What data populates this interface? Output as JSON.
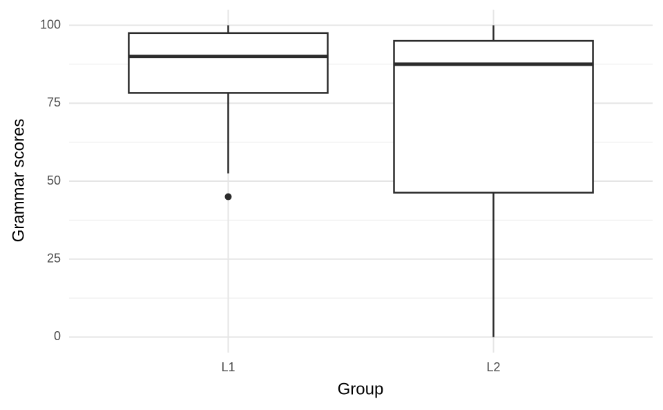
{
  "chart_data": {
    "type": "boxplot",
    "x_label": "Group",
    "y_label": "Grammar scores",
    "categories": [
      "L1",
      "L2"
    ],
    "boxes": [
      {
        "whisker_low": 52.5,
        "q1": 78.3,
        "median": 90,
        "q3": 97.5,
        "whisker_high": 100,
        "outliers": [
          45
        ]
      },
      {
        "whisker_low": 0,
        "q1": 46.3,
        "median": 87.5,
        "q3": 95,
        "whisker_high": 100,
        "outliers": []
      }
    ],
    "color": "#2b2b2b",
    "fill": "#ffffff",
    "ylim": [
      -5,
      105
    ],
    "yticks": [
      0,
      25,
      50,
      75,
      100
    ],
    "grid": true
  }
}
